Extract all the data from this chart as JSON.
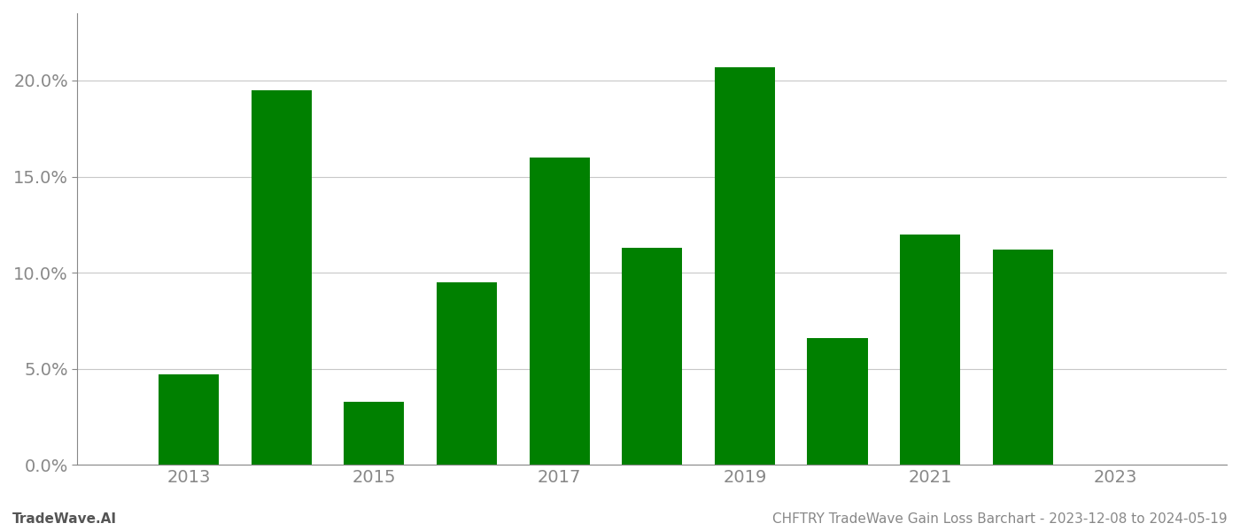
{
  "years": [
    2013,
    2014,
    2015,
    2016,
    2017,
    2018,
    2019,
    2020,
    2021,
    2022
  ],
  "values": [
    0.047,
    0.195,
    0.033,
    0.095,
    0.16,
    0.113,
    0.207,
    0.066,
    0.12,
    0.112
  ],
  "bar_color": "#008000",
  "background_color": "#ffffff",
  "grid_color": "#c8c8c8",
  "xtick_labels": [
    "2013",
    "2015",
    "2017",
    "2019",
    "2021",
    "2023"
  ],
  "xtick_positions": [
    2013,
    2015,
    2017,
    2019,
    2021,
    2023
  ],
  "ytick_labels": [
    "0.0%",
    "5.0%",
    "10.0%",
    "15.0%",
    "20.0%"
  ],
  "ytick_values": [
    0.0,
    0.05,
    0.1,
    0.15,
    0.2
  ],
  "ylim": [
    0,
    0.235
  ],
  "xlim": [
    2011.8,
    2024.2
  ],
  "footer_left": "TradeWave.AI",
  "footer_right": "CHFTRY TradeWave Gain Loss Barchart - 2023-12-08 to 2024-05-19",
  "footer_fontsize": 11,
  "tick_fontsize": 14,
  "bar_width": 0.65
}
